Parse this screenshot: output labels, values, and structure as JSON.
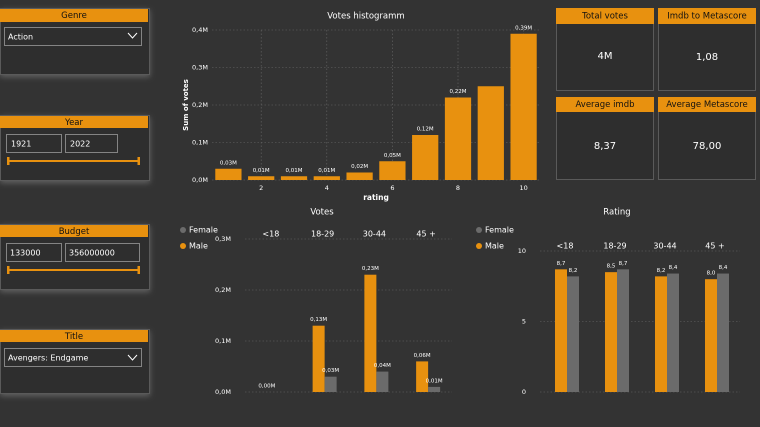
{
  "slicers": [
    {
      "title": "Genre",
      "value": "Action"
    },
    {
      "title": "Year",
      "from": "1921",
      "to": "2022"
    },
    {
      "title": "Budget",
      "from": "133000",
      "to": "356000000"
    },
    {
      "title": "Title",
      "value": "Avengers: Endgame"
    }
  ],
  "cards": [
    {
      "title": "Total votes",
      "value": "4M"
    },
    {
      "title": "Imdb to Metascore",
      "value": "1,08"
    },
    {
      "title": "Average imdb",
      "value": "8,37"
    },
    {
      "title": "Average Metascore",
      "value": "78,00"
    }
  ],
  "chart_data": [
    {
      "type": "histogram-bar",
      "title": "Votes histogramm",
      "x_label": "rating",
      "y_label": "Sum of votes",
      "x": [
        1,
        2,
        3,
        4,
        5,
        6,
        7,
        8,
        9,
        10
      ],
      "values": [
        0.03,
        0.01,
        0.01,
        0.01,
        0.02,
        0.05,
        0.12,
        0.22,
        0.25,
        0.39
      ],
      "value_labels": [
        "0,03M",
        "0,01M",
        "0,01M",
        "0,01M",
        "0,02M",
        "0,05M",
        "0,12M",
        "0,22M",
        null,
        "0,39M"
      ],
      "color": "#e8910f",
      "xlim": [
        0.5,
        10.5
      ],
      "xticks": [
        2,
        4,
        6,
        8,
        10
      ],
      "ylim": [
        0,
        0.4
      ],
      "yticks": [
        {
          "value": 0,
          "label": "0,0M"
        },
        {
          "value": 0.1,
          "label": "0,1M"
        },
        {
          "value": 0.2,
          "label": "0,2M"
        },
        {
          "value": 0.3,
          "label": "0,3M"
        },
        {
          "value": 0.4,
          "label": "0,4M"
        }
      ],
      "grid": true
    },
    {
      "type": "grouped-bar",
      "title": "Votes",
      "categories": [
        "<18",
        "18-29",
        "30-44",
        "45 +"
      ],
      "series": [
        {
          "name": "Male",
          "color": "#e8910f",
          "values": [
            0.0,
            0.13,
            0.23,
            0.06
          ],
          "value_labels": [
            "0,00M",
            "0,13M",
            "0,23M",
            "0,06M"
          ]
        },
        {
          "name": "Female",
          "color": "#6b6b6b",
          "values": [
            0,
            0.03,
            0.04,
            0.01
          ],
          "value_labels": [
            null,
            "0,03M",
            "0,04M",
            "0,01M"
          ]
        }
      ],
      "ylim": [
        0,
        0.3
      ],
      "yticks": [
        {
          "value": 0,
          "label": "0,0M"
        },
        {
          "value": 0.1,
          "label": "0,1M"
        },
        {
          "value": 0.2,
          "label": "0,2M"
        },
        {
          "value": 0.3,
          "label": "0,3M"
        }
      ],
      "grid": true,
      "legend": "top-left"
    },
    {
      "type": "grouped-bar",
      "title": "Rating",
      "categories": [
        "<18",
        "18-29",
        "30-44",
        "45 +"
      ],
      "series": [
        {
          "name": "Male",
          "color": "#e8910f",
          "values": [
            8.7,
            8.5,
            8.2,
            8.0
          ],
          "value_labels": [
            "8,7",
            "8,5",
            "8,2",
            "8,0"
          ]
        },
        {
          "name": "Female",
          "color": "#6b6b6b",
          "values": [
            8.2,
            8.7,
            8.4,
            8.4
          ],
          "value_labels": [
            "8,2",
            "8,7",
            "8,4",
            "8,4"
          ]
        }
      ],
      "ylim": [
        0,
        10
      ],
      "yticks": [
        0,
        5,
        10
      ],
      "grid": true,
      "legend": "top-left"
    }
  ]
}
